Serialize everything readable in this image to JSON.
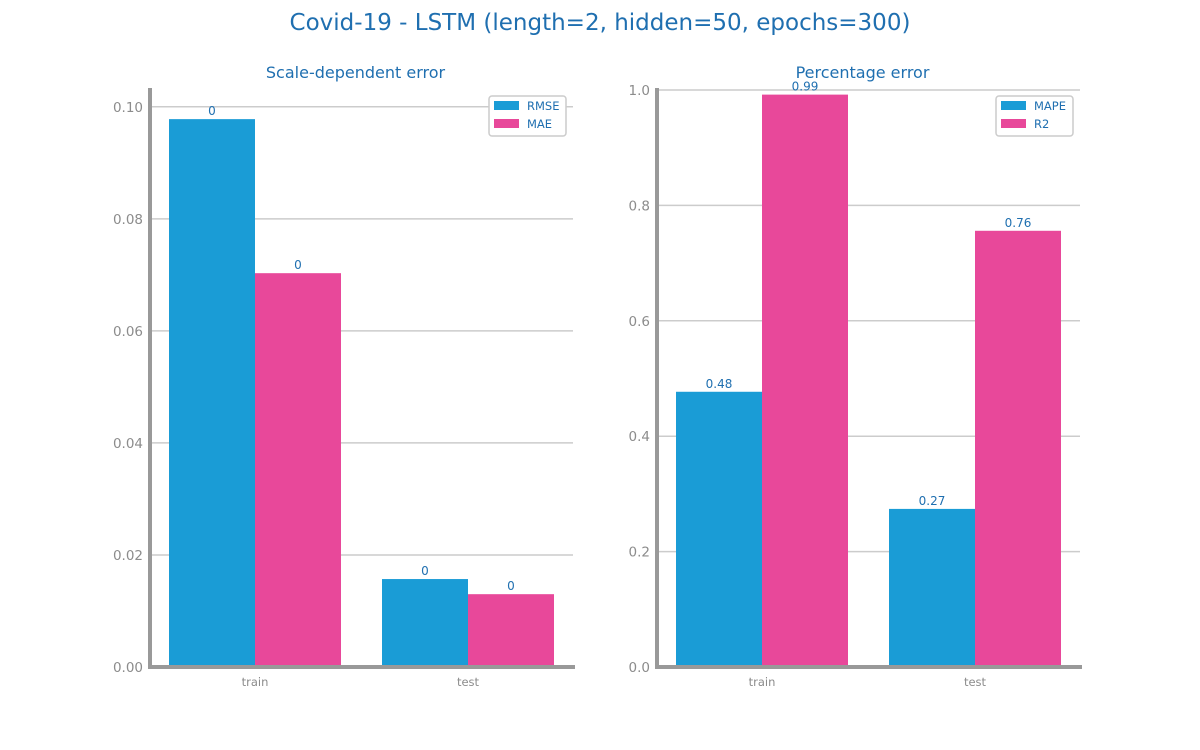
{
  "suptitle": "Covid-19 - LSTM (length=2, hidden=50, epochs=300)",
  "colors": {
    "series1": "#1a9cd6",
    "series2": "#e8489a",
    "title": "#1f6fb0",
    "axis": "#999999",
    "grid": "#cccccc",
    "label": "#1f6fb0"
  },
  "chart_data": [
    {
      "type": "bar",
      "title": "Scale-dependent error",
      "categories": [
        "train",
        "test"
      ],
      "series": [
        {
          "name": "RMSE",
          "values": [
            0.0978,
            0.0157
          ],
          "labels": [
            "0",
            "0"
          ]
        },
        {
          "name": "MAE",
          "values": [
            0.0703,
            0.013
          ],
          "labels": [
            "0",
            "0"
          ]
        }
      ],
      "ylim": [
        0,
        0.103
      ],
      "yticks": [
        0.0,
        0.02,
        0.04,
        0.06,
        0.08,
        0.1
      ],
      "ytick_labels": [
        "0.00",
        "0.02",
        "0.04",
        "0.06",
        "0.08",
        "0.10"
      ],
      "grid": true,
      "legend": "top-right"
    },
    {
      "type": "bar",
      "title": "Percentage error",
      "categories": [
        "train",
        "test"
      ],
      "series": [
        {
          "name": "MAPE",
          "values": [
            0.477,
            0.274
          ],
          "labels": [
            "0.48",
            "0.27"
          ]
        },
        {
          "name": "R2",
          "values": [
            0.992,
            0.756
          ],
          "labels": [
            "0.99",
            "0.76"
          ]
        }
      ],
      "ylim": [
        0,
        1.0
      ],
      "yticks": [
        0.0,
        0.2,
        0.4,
        0.6,
        0.8,
        1.0
      ],
      "ytick_labels": [
        "0.0",
        "0.2",
        "0.4",
        "0.6",
        "0.8",
        "1.0"
      ],
      "grid": true,
      "legend": "top-right"
    }
  ]
}
